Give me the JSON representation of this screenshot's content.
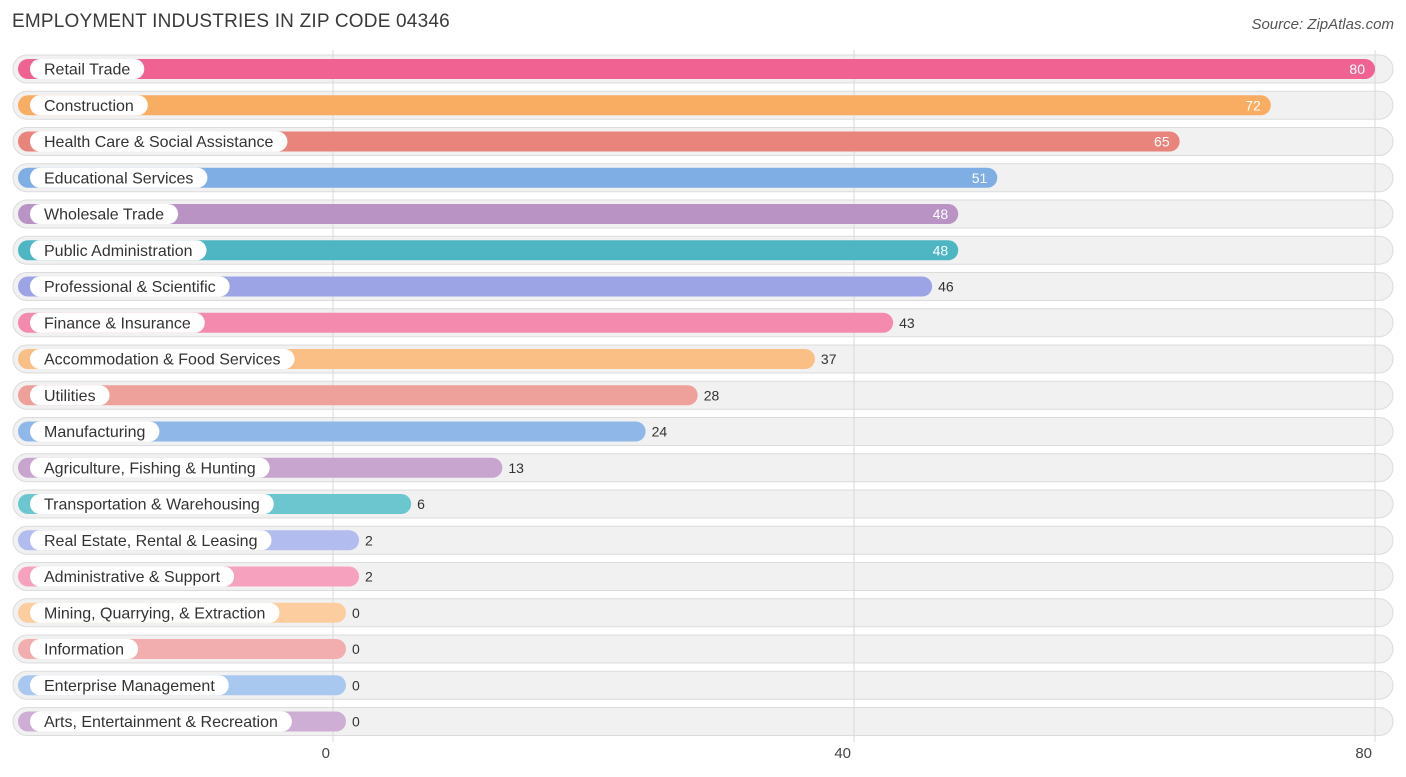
{
  "header": {
    "title": "EMPLOYMENT INDUSTRIES IN ZIP CODE 04346",
    "source": "Source: ZipAtlas.com"
  },
  "chart_data": {
    "type": "bar",
    "orientation": "horizontal",
    "title": "EMPLOYMENT INDUSTRIES IN ZIP CODE 04346",
    "xlabel": "",
    "ylabel": "",
    "xlim": [
      0,
      80
    ],
    "ticks": [
      "0",
      "40",
      "80"
    ],
    "tick_values": [
      0,
      40,
      80
    ],
    "grid": true,
    "categories": [
      "Retail Trade",
      "Construction",
      "Health Care & Social Assistance",
      "Educational Services",
      "Wholesale Trade",
      "Public Administration",
      "Professional & Scientific",
      "Finance & Insurance",
      "Accommodation & Food Services",
      "Utilities",
      "Manufacturing",
      "Agriculture, Fishing & Hunting",
      "Transportation & Warehousing",
      "Real Estate, Rental & Leasing",
      "Administrative & Support",
      "Mining, Quarrying, & Extraction",
      "Information",
      "Enterprise Management",
      "Arts, Entertainment & Recreation"
    ],
    "values": [
      80,
      72,
      65,
      51,
      48,
      48,
      46,
      43,
      37,
      28,
      24,
      13,
      6,
      2,
      2,
      0,
      0,
      0,
      0
    ],
    "colors": [
      "#f06292",
      "#f8ad63",
      "#e8847c",
      "#7eaee3",
      "#b993c4",
      "#4db6c2",
      "#9ca4e6",
      "#f48aae",
      "#f9bf85",
      "#eea19a",
      "#8fb7e8",
      "#c8a5cf",
      "#6cc6cf",
      "#b3bcee",
      "#f6a2bf",
      "#fbcd9f",
      "#f2aeae",
      "#a9c8ef",
      "#cfaed6"
    ]
  }
}
